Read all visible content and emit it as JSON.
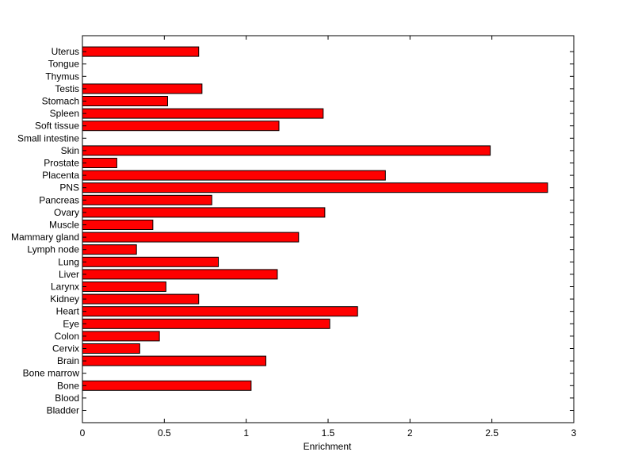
{
  "chart_data": {
    "type": "bar",
    "orientation": "horizontal",
    "title": "",
    "xlabel": "Enrichment",
    "ylabel": "",
    "xlim": [
      0,
      3
    ],
    "xticks": [
      "0",
      "0.5",
      "1",
      "1.5",
      "2",
      "2.5",
      "3"
    ],
    "grid": false,
    "bar_color": "#ff0000",
    "categories": [
      "Bladder",
      "Blood",
      "Bone",
      "Bone marrow",
      "Brain",
      "Cervix",
      "Colon",
      "Eye",
      "Heart",
      "Kidney",
      "Larynx",
      "Liver",
      "Lung",
      "Lymph node",
      "Mammary gland",
      "Muscle",
      "Ovary",
      "Pancreas",
      "PNS",
      "Placenta",
      "Prostate",
      "Skin",
      "Small intestine",
      "Soft tissue",
      "Spleen",
      "Stomach",
      "Testis",
      "Thymus",
      "Tongue",
      "Uterus"
    ],
    "values": [
      0,
      0,
      1.03,
      0,
      1.12,
      0.35,
      0.47,
      1.51,
      1.68,
      0.71,
      0.51,
      1.19,
      0.83,
      0.33,
      1.32,
      0.43,
      1.48,
      0.79,
      2.84,
      1.85,
      0.21,
      2.49,
      0,
      1.2,
      1.47,
      0.52,
      0.73,
      0,
      0,
      0.71
    ]
  }
}
